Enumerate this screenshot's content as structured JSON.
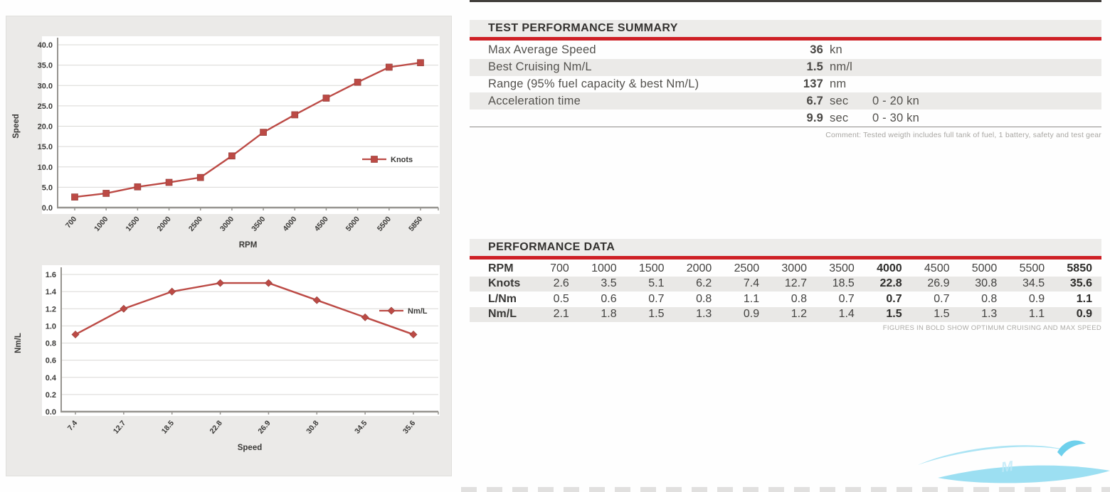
{
  "colors": {
    "accent_red": "#ce2026",
    "chart_line": "#bc4a45",
    "panel_bg": "#ebeae8",
    "stripe_gray": "#e9e8e6",
    "watermark_blue": "#8ed9f1"
  },
  "summary": {
    "title": "TEST PERFORMANCE SUMMARY",
    "rows": [
      {
        "label": "Max Average Speed",
        "value": "36",
        "unit": "kn",
        "extra": ""
      },
      {
        "label": "Best Cruising Nm/L",
        "value": "1.5",
        "unit": "nm/l",
        "extra": ""
      },
      {
        "label": "Range (95% fuel capacity & best Nm/L)",
        "value": "137",
        "unit": "nm",
        "extra": ""
      },
      {
        "label": "Acceleration time",
        "value": "6.7",
        "unit": "sec",
        "extra": "0 - 20 kn"
      },
      {
        "label": "",
        "value": "9.9",
        "unit": "sec",
        "extra": "0 - 30 kn"
      }
    ],
    "comment": "Comment: Tested weigth includes full tank of fuel, 1 battery, safety and test gear"
  },
  "performance": {
    "title": "PERFORMANCE DATA",
    "rows": [
      {
        "label": "RPM",
        "values": [
          "700",
          "1000",
          "1500",
          "2000",
          "2500",
          "3000",
          "3500",
          "4000",
          "4500",
          "5000",
          "5500",
          "5850"
        ]
      },
      {
        "label": "Knots",
        "values": [
          "2.6",
          "3.5",
          "5.1",
          "6.2",
          "7.4",
          "12.7",
          "18.5",
          "22.8",
          "26.9",
          "30.8",
          "34.5",
          "35.6"
        ]
      },
      {
        "label": "L/Nm",
        "values": [
          "0.5",
          "0.6",
          "0.7",
          "0.8",
          "1.1",
          "0.8",
          "0.7",
          "0.7",
          "0.7",
          "0.8",
          "0.9",
          "1.1"
        ]
      },
      {
        "label": "Nm/L",
        "values": [
          "2.1",
          "1.8",
          "1.5",
          "1.3",
          "0.9",
          "1.2",
          "1.4",
          "1.5",
          "1.5",
          "1.3",
          "1.1",
          "0.9"
        ]
      }
    ],
    "bold_columns": [
      7,
      11
    ],
    "footnote": "FIGURES IN BOLD SHOW OPTIMUM CRUISING AND MAX SPEED"
  },
  "chart_data": [
    {
      "type": "line",
      "title": "",
      "xlabel": "RPM",
      "ylabel": "Speed",
      "legend": "Knots",
      "marker": "square",
      "color": "#bc4a45",
      "ylim": [
        0,
        40
      ],
      "ytick_step": 5,
      "grid": true,
      "legend_position": "right-middle",
      "categories": [
        "700",
        "1000",
        "1500",
        "2000",
        "2500",
        "3000",
        "3500",
        "4000",
        "4500",
        "5000",
        "5500",
        "5850"
      ],
      "values": [
        2.6,
        3.5,
        5.1,
        6.2,
        7.4,
        12.7,
        18.5,
        22.8,
        26.9,
        30.8,
        34.5,
        35.6
      ]
    },
    {
      "type": "line",
      "title": "",
      "xlabel": "Speed",
      "ylabel": "Nm/L",
      "legend": "Nm/L",
      "marker": "diamond",
      "color": "#bc4a45",
      "ylim": [
        0,
        1.6
      ],
      "ytick_step": 0.2,
      "grid": true,
      "legend_position": "right-middle",
      "categories": [
        "7.4",
        "12.7",
        "18.5",
        "22.8",
        "26.9",
        "30.8",
        "34.5",
        "35.6"
      ],
      "values": [
        0.9,
        1.2,
        1.4,
        1.5,
        1.5,
        1.3,
        1.1,
        0.9
      ]
    }
  ]
}
